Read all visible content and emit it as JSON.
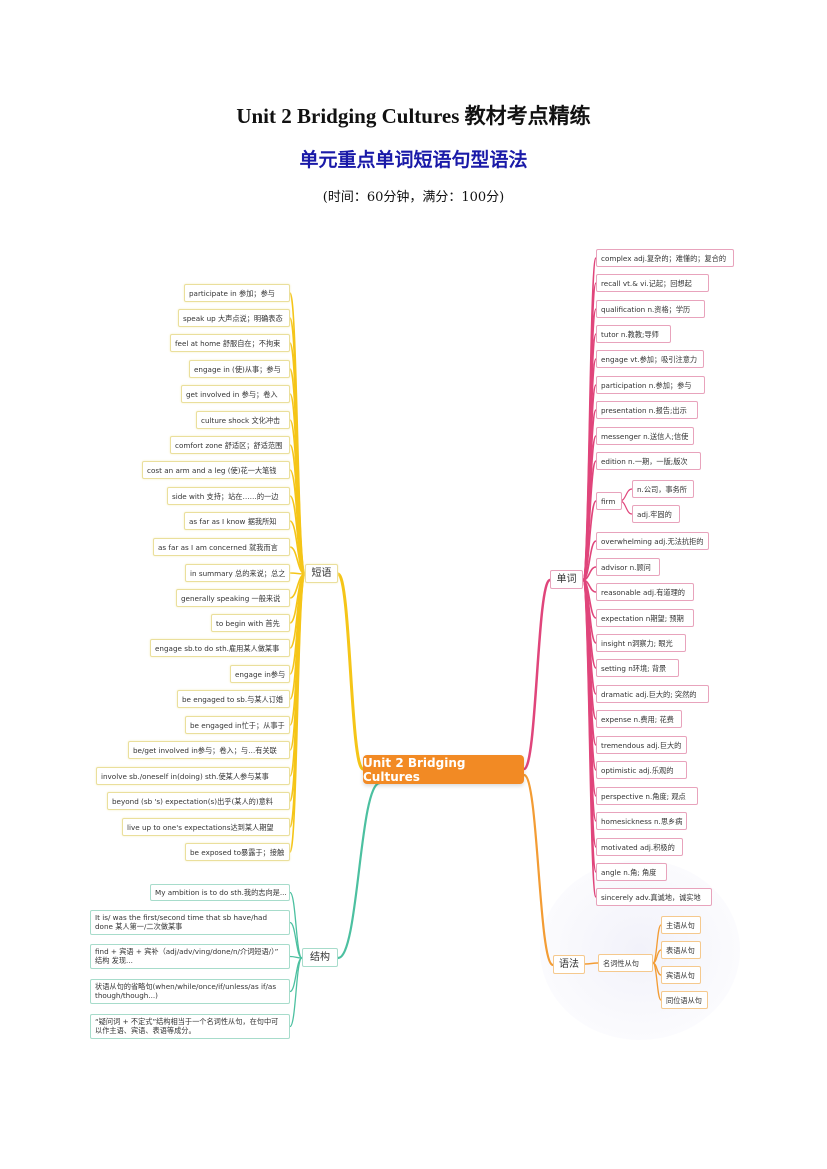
{
  "header": {
    "title": "Unit 2 Bridging Cultures  教材考点精练",
    "subtitle": "单元重点单词短语句型语法",
    "time_note": "(时间：60分钟，满分：100分)"
  },
  "colors": {
    "phrases": "#f5c518",
    "words": "#e0457b",
    "structures": "#4cc0a0",
    "grammar": "#f39c34",
    "center": "#f28a24",
    "subtitle": "#1a1aa8"
  },
  "mindmap": {
    "center": "Unit 2 Bridging Cultures",
    "phrases": {
      "label": "短语",
      "items": [
        "participate in 参加；参与",
        "speak up 大声点说；明确表态",
        "feel at home 舒服自在；不拘束",
        "engage in (使)从事；参与",
        "get involved in 参与；卷入",
        "culture shock 文化冲击",
        "comfort zone 舒适区；舒适范围",
        "cost an arm and a leg (使)花一大笔钱",
        "side with 支持；站在……的一边",
        "as far as I know 据我所知",
        "as far as I am concerned 就我而言",
        "in summary 总的来说；总之",
        "generally speaking 一般来说",
        "to begin with 首先",
        "engage sb.to do sth.雇用某人做某事",
        "engage in参与",
        "be engaged to sb.与某人订婚",
        "be engaged in忙于；从事于",
        "be/get involved in参与；卷入；与…有关联",
        "involve sb./oneself in(doing) sth.使某人参与某事",
        "beyond (sb 's) expectation(s)出乎(某人的)意料",
        "live up to one's expectations达到某人期望",
        "be exposed to暴露于；接触"
      ]
    },
    "structures": {
      "label": "结构",
      "items": [
        "My ambition is to do sth.我的志向是...",
        "It is/ was the first/second time that sb have/had done 某人第一/二次做某事",
        "find + 宾语 + 宾补（adj/adv/ving/done/n/介词短语/）” 结构 发现...",
        "状语从句的省略句(when/while/once/if/unless/as if/as though/though...)",
        "“疑问词 + 不定式”结构相当于一个名词性从句，在句中可以作主语、宾语、表语等成分。"
      ]
    },
    "words": {
      "label": "单词",
      "items": [
        "complex adj.复杂的；难懂的；复合的",
        "recall vt.& vi.记起；回想起",
        "qualification n.资格；学历",
        "tutor n.教教;导师",
        "engage vt.参加；吸引注意力",
        "participation n.参加；参与",
        "presentation n.报告;出示",
        "messenger n.送信人;信使",
        "edition n.一期，一版;版次",
        "firm",
        "overwhelming adj.无法抗拒的",
        "advisor n.顾问",
        "reasonable adj.有道理的",
        "expectation n期望; 预期",
        "insight n洞察力; 眼光",
        "setting n环境; 背景",
        "dramatic adj.巨大的; 突然的",
        "expense n.费用; 花费",
        "tremendous adj.巨大的",
        "optimistic adj.乐观的",
        "perspective n.角度; 观点",
        "homesickness n.思乡病",
        "motivated adj.积极的",
        "angle n.角; 角度",
        "sincerely adv.真诚地，诚实地"
      ],
      "firm_senses": [
        "n.公司，事务所",
        "adj.牢固的"
      ]
    },
    "grammar": {
      "label": "语法",
      "sub": "名词性从句",
      "items": [
        "主语从句",
        "表语从句",
        "宾语从句",
        "同位语从句"
      ]
    }
  }
}
